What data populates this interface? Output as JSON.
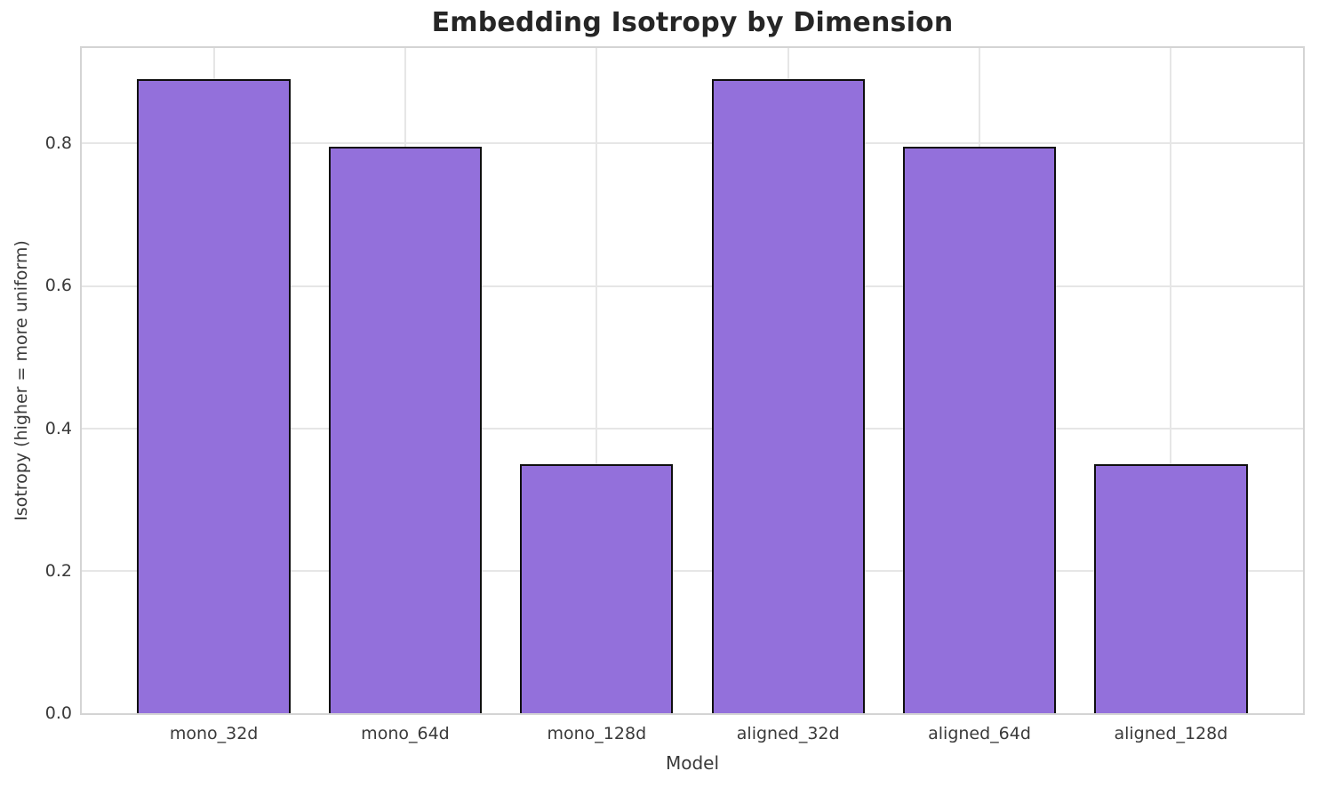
{
  "chart_data": {
    "type": "bar",
    "title": "Embedding Isotropy by Dimension",
    "xlabel": "Model",
    "ylabel": "Isotropy (higher = more uniform)",
    "categories": [
      "mono_32d",
      "mono_64d",
      "mono_128d",
      "aligned_32d",
      "aligned_64d",
      "aligned_128d"
    ],
    "values": [
      0.89,
      0.795,
      0.35,
      0.89,
      0.795,
      0.35
    ],
    "yticks": [
      0.0,
      0.2,
      0.4,
      0.6,
      0.8
    ],
    "ytick_labels": [
      "0.0",
      "0.2",
      "0.4",
      "0.6",
      "0.8"
    ],
    "ylim": [
      0,
      0.934
    ],
    "xlim": [
      -0.69,
      5.69
    ],
    "bar_width_fraction": 0.8,
    "grid": true,
    "legend": null,
    "colors": {
      "bar_fill": "#9370DB",
      "bar_edge": "#0f0f0f",
      "grid": "#e6e6e6",
      "spine": "#d4d4d4",
      "title_text": "#262626",
      "tick_text": "#3a3a3a"
    }
  }
}
